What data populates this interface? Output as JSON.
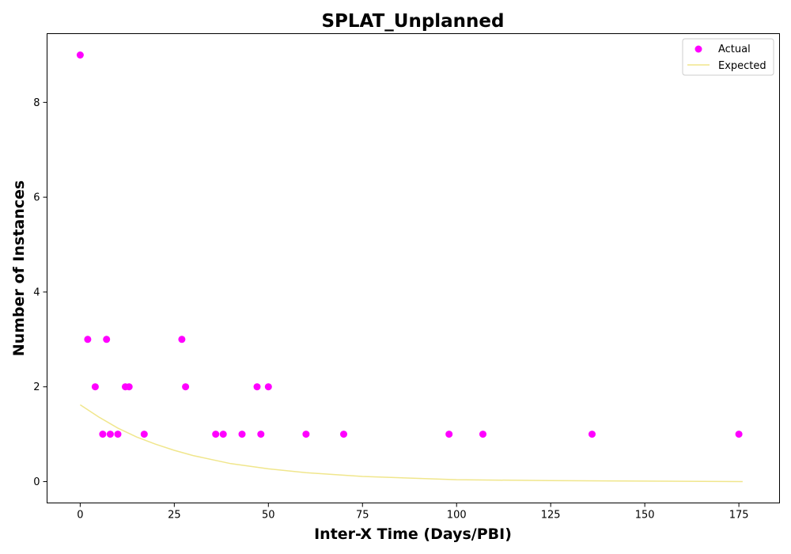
{
  "chart_data": {
    "type": "scatter",
    "title": "SPLAT_Unplanned",
    "xlabel": "Inter-X Time (Days/PBI)",
    "ylabel": "Number of Instances",
    "xlim": [
      -8.8,
      185.8
    ],
    "ylim": [
      -0.45,
      9.45
    ],
    "xticks": [
      0,
      25,
      50,
      75,
      100,
      125,
      150,
      175
    ],
    "yticks": [
      0,
      2,
      4,
      6,
      8
    ],
    "grid": false,
    "legend_position": "top-right",
    "series": [
      {
        "name": "Actual",
        "kind": "scatter",
        "color": "#ff00ff",
        "x": [
          0,
          2,
          4,
          6,
          7,
          8,
          10,
          12,
          13,
          17,
          27,
          28,
          36,
          38,
          43,
          47,
          48,
          50,
          60,
          70,
          98,
          107,
          136,
          175
        ],
        "y": [
          9,
          3,
          2,
          1,
          3,
          1,
          1,
          2,
          2,
          1,
          3,
          2,
          1,
          1,
          1,
          2,
          1,
          2,
          1,
          1,
          1,
          1,
          1,
          1
        ]
      },
      {
        "name": "Expected",
        "kind": "line",
        "color": "#f0e68c",
        "x": [
          0,
          5,
          10,
          15,
          20,
          25,
          30,
          40,
          50,
          60,
          75,
          100,
          125,
          150,
          176
        ],
        "y": [
          1.62,
          1.36,
          1.13,
          0.94,
          0.79,
          0.66,
          0.55,
          0.38,
          0.27,
          0.19,
          0.11,
          0.04,
          0.02,
          0.01,
          0.0
        ]
      }
    ]
  }
}
